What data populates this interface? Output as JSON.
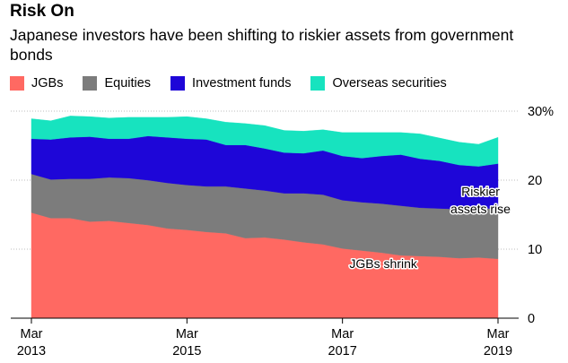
{
  "chart_data": {
    "type": "area",
    "title": "Risk On",
    "subtitle": "Japanese investors have been shifting to riskier assets from government bonds",
    "stacked": true,
    "ylim": [
      0,
      30
    ],
    "y_ticks": [
      0,
      10,
      20,
      30
    ],
    "y_tick_labels": [
      "0",
      "10",
      "20",
      "30%"
    ],
    "x_ticks": [
      {
        "month": "Mar",
        "year": "2013",
        "x": 0
      },
      {
        "month": "Mar",
        "year": "2015",
        "x": 8
      },
      {
        "month": "Mar",
        "year": "2017",
        "x": 16
      },
      {
        "month": "Mar",
        "year": "2019",
        "x": 24
      }
    ],
    "x": [
      0,
      1,
      2,
      3,
      4,
      5,
      6,
      7,
      8,
      9,
      10,
      11,
      12,
      13,
      14,
      15,
      16,
      17,
      18,
      19,
      20,
      21,
      22,
      23,
      24
    ],
    "series": [
      {
        "name": "JGBs",
        "color": "#ff6962",
        "values": [
          15.3,
          14.5,
          14.5,
          14.0,
          14.1,
          13.8,
          13.5,
          13.0,
          12.8,
          12.5,
          12.3,
          11.6,
          11.7,
          11.4,
          11.0,
          10.7,
          10.1,
          9.8,
          9.5,
          9.1,
          9.0,
          8.9,
          8.7,
          8.8,
          8.6
        ]
      },
      {
        "name": "Equities",
        "color": "#7c7c7c",
        "values": [
          5.6,
          5.6,
          5.7,
          6.2,
          6.3,
          6.5,
          6.5,
          6.6,
          6.5,
          6.6,
          6.8,
          7.2,
          6.8,
          6.7,
          7.1,
          7.2,
          7.0,
          7.0,
          7.1,
          7.2,
          7.0,
          7.0,
          7.1,
          7.1,
          7.3
        ]
      },
      {
        "name": "Investment funds",
        "color": "#1e06d8",
        "values": [
          5.1,
          5.8,
          6.0,
          6.1,
          5.6,
          5.7,
          6.4,
          6.6,
          6.7,
          6.8,
          6.0,
          6.3,
          6.1,
          5.9,
          5.8,
          6.4,
          6.4,
          6.4,
          6.9,
          7.4,
          7.1,
          6.9,
          6.4,
          6.1,
          6.5
        ]
      },
      {
        "name": "Overseas securities",
        "color": "#17e3bf",
        "values": [
          2.9,
          2.7,
          3.1,
          2.9,
          3.0,
          3.1,
          2.7,
          2.9,
          3.2,
          3.0,
          3.3,
          3.1,
          3.3,
          3.2,
          3.2,
          3.0,
          3.4,
          3.7,
          3.4,
          3.2,
          3.6,
          3.3,
          3.3,
          3.2,
          3.8
        ]
      }
    ],
    "annotations": [
      {
        "lines": [
          "Riskier",
          "assets rise"
        ],
        "x": 23.1,
        "y": [
          17.7,
          15.2
        ]
      },
      {
        "lines": [
          "JGBs shrink"
        ],
        "x": 18.1,
        "y": [
          7.3
        ]
      }
    ]
  }
}
